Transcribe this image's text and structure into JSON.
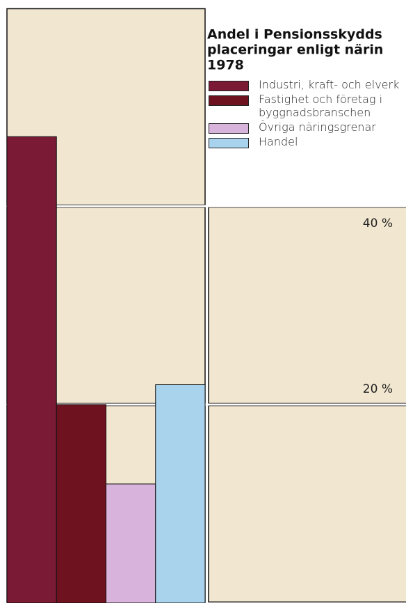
{
  "chart_data": {
    "type": "bar",
    "title": [
      "Andel i Pensionsskydds",
      "placeringar enligt närin",
      "1978"
    ],
    "categories": [
      "Industri, kraft- och elverk",
      "Fastighet och företag i byggnadsbranschen",
      "Övriga näringsgrenar",
      "Handel"
    ],
    "values": [
      47,
      20,
      12,
      22
    ],
    "colors": [
      "#7a1a35",
      "#6e1220",
      "#d8b4dc",
      "#a9d3ec"
    ],
    "ylim": [
      0,
      60
    ],
    "yticks": [
      {
        "value": 20,
        "label": "20 %"
      },
      {
        "value": 40,
        "label": "40 %"
      }
    ],
    "grid": true
  }
}
